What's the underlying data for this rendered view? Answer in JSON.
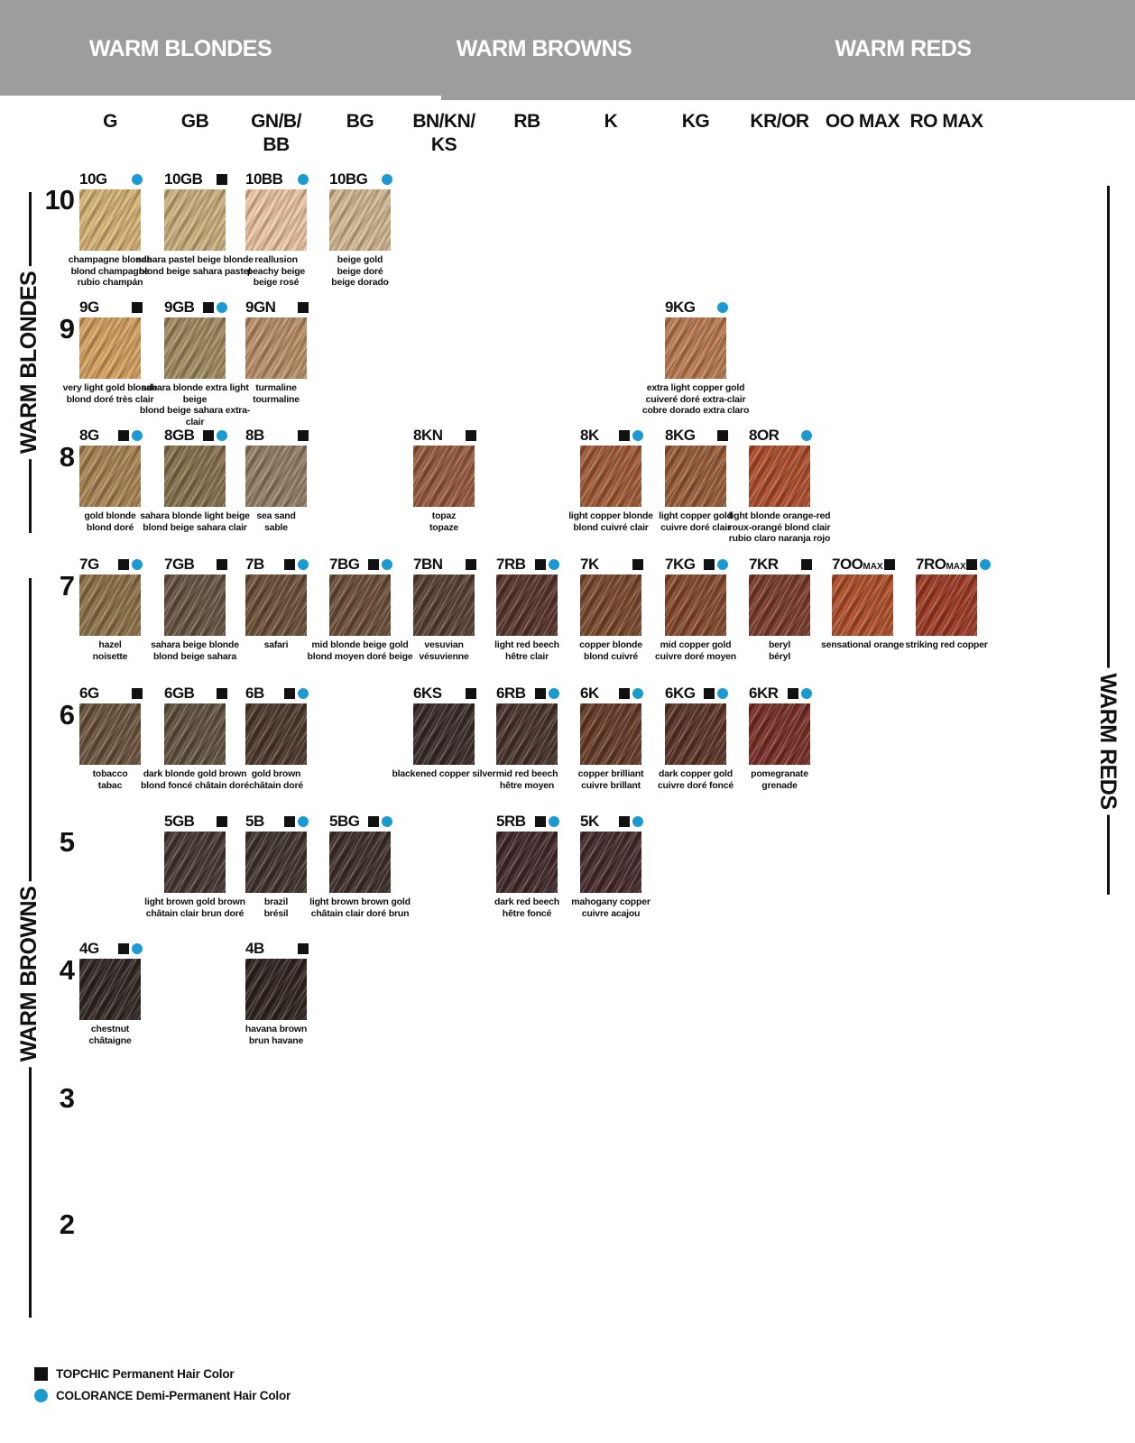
{
  "page": {
    "background": "#ffffff",
    "banner_color": "#9d9d9d",
    "accent_blue": "#1b9ad2",
    "ink": "#111111"
  },
  "header": {
    "groups": [
      {
        "label": "WARM BLONDES"
      },
      {
        "label": "WARM BROWNS"
      },
      {
        "label": "WARM REDS"
      }
    ]
  },
  "side_labels": {
    "left_top": "WARM BLONDES",
    "left_bottom": "WARM BROWNS",
    "right": "WARM REDS"
  },
  "columns": [
    {
      "key": "G",
      "lines": [
        "G"
      ]
    },
    {
      "key": "GB",
      "lines": [
        "GB"
      ]
    },
    {
      "key": "GNBBB",
      "lines": [
        "GN/B/",
        "BB"
      ]
    },
    {
      "key": "BG",
      "lines": [
        "BG"
      ]
    },
    {
      "key": "BNKNKS",
      "lines": [
        "BN/KN/",
        "KS"
      ]
    },
    {
      "key": "RB",
      "lines": [
        "RB"
      ]
    },
    {
      "key": "K",
      "lines": [
        "K"
      ]
    },
    {
      "key": "KG",
      "lines": [
        "KG"
      ]
    },
    {
      "key": "KROR",
      "lines": [
        "KR/OR"
      ]
    },
    {
      "key": "OOMAX",
      "lines": [
        "OO MAX"
      ]
    },
    {
      "key": "ROMAX",
      "lines": [
        "RO MAX"
      ]
    }
  ],
  "levels": [
    "10",
    "9",
    "8",
    "7",
    "6",
    "5",
    "4",
    "3",
    "2"
  ],
  "legend": [
    {
      "marker": "topchic-square",
      "label": "TOPCHIC Permanent Hair Color"
    },
    {
      "marker": "colorance-dot",
      "label": "COLORANCE Demi-Permanent Hair Color"
    }
  ],
  "swatches": [
    {
      "code": "10G",
      "sub": "",
      "level": "10",
      "column": "G",
      "topchic": false,
      "colorance": true,
      "color": "#d8b474",
      "names": [
        "champagne blonde",
        "blond champagne",
        "rubio champán"
      ]
    },
    {
      "code": "10GB",
      "sub": "",
      "level": "10",
      "column": "GB",
      "topchic": true,
      "colorance": false,
      "color": "#ccb07c",
      "names": [
        "sahara pastel beige blonde",
        "blond beige sahara pastel"
      ]
    },
    {
      "code": "10BB",
      "sub": "",
      "level": "10",
      "column": "GNBBB",
      "topchic": false,
      "colorance": true,
      "color": "#eec6a2",
      "names": [
        "reallusion",
        "peachy beige",
        "beige rosé"
      ]
    },
    {
      "code": "10BG",
      "sub": "",
      "level": "10",
      "column": "BG",
      "topchic": false,
      "colorance": true,
      "color": "#d2b890",
      "names": [
        "beige gold",
        "beige doré",
        "beige dorado"
      ]
    },
    {
      "code": "9G",
      "sub": "",
      "level": "9",
      "column": "G",
      "topchic": true,
      "colorance": false,
      "color": "#d6a05e",
      "names": [
        "very light gold blonde",
        "blond doré très clair"
      ]
    },
    {
      "code": "9GB",
      "sub": "",
      "level": "9",
      "column": "GB",
      "topchic": true,
      "colorance": true,
      "color": "#a18a5e",
      "names": [
        "sahara blonde extra light beige",
        "blond beige sahara extra-clair"
      ]
    },
    {
      "code": "9GN",
      "sub": "",
      "level": "9",
      "column": "GNBBB",
      "topchic": true,
      "colorance": false,
      "color": "#b98f66",
      "names": [
        "turmaline",
        "tourmaline"
      ]
    },
    {
      "code": "9KG",
      "sub": "",
      "level": "9",
      "column": "KG",
      "topchic": false,
      "colorance": true,
      "color": "#b97a4e",
      "names": [
        "extra light copper gold",
        "cuiveré doré extra-clair",
        "cobre dorado extra claro"
      ]
    },
    {
      "code": "8G",
      "sub": "",
      "level": "8",
      "column": "G",
      "topchic": true,
      "colorance": true,
      "color": "#a98352",
      "names": [
        "gold blonde",
        "blond doré"
      ]
    },
    {
      "code": "8GB",
      "sub": "",
      "level": "8",
      "column": "GB",
      "topchic": true,
      "colorance": true,
      "color": "#86704c",
      "names": [
        "sahara blonde light beige",
        "blond beige sahara clair"
      ]
    },
    {
      "code": "8B",
      "sub": "",
      "level": "8",
      "column": "GNBBB",
      "topchic": true,
      "colorance": false,
      "color": "#947c64",
      "names": [
        "sea sand",
        "sable"
      ]
    },
    {
      "code": "8KN",
      "sub": "",
      "level": "8",
      "column": "BNKNKS",
      "topchic": true,
      "colorance": false,
      "color": "#96593c",
      "names": [
        "topaz",
        "topaze"
      ]
    },
    {
      "code": "8K",
      "sub": "",
      "level": "8",
      "column": "K",
      "topchic": true,
      "colorance": true,
      "color": "#a05a34",
      "names": [
        "light copper blonde",
        "blond cuivré clair"
      ]
    },
    {
      "code": "8KG",
      "sub": "",
      "level": "8",
      "column": "KG",
      "topchic": true,
      "colorance": false,
      "color": "#985c36",
      "names": [
        "light copper gold",
        "cuivre doré clair"
      ]
    },
    {
      "code": "8OR",
      "sub": "",
      "level": "8",
      "column": "KROR",
      "topchic": false,
      "colorance": true,
      "color": "#ae4d2a",
      "names": [
        "light blonde orange-red",
        "roux-orangé blond clair",
        "rubio claro naranja rojo"
      ]
    },
    {
      "code": "7G",
      "sub": "",
      "level": "7",
      "column": "G",
      "topchic": true,
      "colorance": true,
      "color": "#8d7146",
      "names": [
        "hazel",
        "noisette"
      ]
    },
    {
      "code": "7GB",
      "sub": "",
      "level": "7",
      "column": "GB",
      "topchic": true,
      "colorance": false,
      "color": "#675340",
      "names": [
        "sahara beige blonde",
        "blond beige sahara"
      ]
    },
    {
      "code": "7B",
      "sub": "",
      "level": "7",
      "column": "GNBBB",
      "topchic": true,
      "colorance": true,
      "color": "#6d4f38",
      "names": [
        "safari"
      ]
    },
    {
      "code": "7BG",
      "sub": "",
      "level": "7",
      "column": "BG",
      "topchic": true,
      "colorance": true,
      "color": "#6a4e36",
      "names": [
        "mid blonde beige gold",
        "blond moyen doré beige"
      ]
    },
    {
      "code": "7BN",
      "sub": "",
      "level": "7",
      "column": "BNKNKS",
      "topchic": true,
      "colorance": false,
      "color": "#583f32",
      "names": [
        "vesuvian",
        "vésuvienne"
      ]
    },
    {
      "code": "7RB",
      "sub": "",
      "level": "7",
      "column": "RB",
      "topchic": true,
      "colorance": true,
      "color": "#57342a",
      "names": [
        "light red beech",
        "hêtre clair"
      ]
    },
    {
      "code": "7K",
      "sub": "",
      "level": "7",
      "column": "K",
      "topchic": true,
      "colorance": false,
      "color": "#7a482c",
      "names": [
        "copper blonde",
        "blond cuivré"
      ]
    },
    {
      "code": "7KG",
      "sub": "",
      "level": "7",
      "column": "KG",
      "topchic": true,
      "colorance": true,
      "color": "#86482a",
      "names": [
        "mid copper gold",
        "cuivre doré moyen"
      ]
    },
    {
      "code": "7KR",
      "sub": "",
      "level": "7",
      "column": "KROR",
      "topchic": true,
      "colorance": false,
      "color": "#7a3a2b",
      "names": [
        "beryl",
        "béryl"
      ]
    },
    {
      "code": "7OO",
      "sub": "MAX",
      "level": "7",
      "column": "OOMAX",
      "topchic": true,
      "colorance": false,
      "color": "#b04e28",
      "names": [
        "sensational orange"
      ]
    },
    {
      "code": "7RO",
      "sub": "MAX",
      "level": "7",
      "column": "ROMAX",
      "topchic": true,
      "colorance": true,
      "color": "#9e3a22",
      "names": [
        "striking red copper"
      ]
    },
    {
      "code": "6G",
      "sub": "",
      "level": "6",
      "column": "G",
      "topchic": true,
      "colorance": false,
      "color": "#6b523a",
      "names": [
        "tobacco",
        "tabac"
      ]
    },
    {
      "code": "6GB",
      "sub": "",
      "level": "6",
      "column": "GB",
      "topchic": true,
      "colorance": false,
      "color": "#60503c",
      "names": [
        "dark blonde gold brown",
        "blond foncé châtain doré"
      ]
    },
    {
      "code": "6B",
      "sub": "",
      "level": "6",
      "column": "GNBBB",
      "topchic": true,
      "colorance": true,
      "color": "#4d372b",
      "names": [
        "gold brown",
        "châtain doré"
      ]
    },
    {
      "code": "6KS",
      "sub": "",
      "level": "6",
      "column": "BNKNKS",
      "topchic": true,
      "colorance": false,
      "color": "#382b28",
      "names": [
        "blackened copper silver"
      ]
    },
    {
      "code": "6RB",
      "sub": "",
      "level": "6",
      "column": "RB",
      "topchic": true,
      "colorance": true,
      "color": "#48312a",
      "names": [
        "mid red beech",
        "hêtre moyen"
      ]
    },
    {
      "code": "6K",
      "sub": "",
      "level": "6",
      "column": "K",
      "topchic": true,
      "colorance": true,
      "color": "#663a26",
      "names": [
        "copper brilliant",
        "cuivre brillant"
      ]
    },
    {
      "code": "6KG",
      "sub": "",
      "level": "6",
      "column": "KG",
      "topchic": true,
      "colorance": true,
      "color": "#5b3325",
      "names": [
        "dark copper gold",
        "cuivre doré foncé"
      ]
    },
    {
      "code": "6KR",
      "sub": "",
      "level": "6",
      "column": "KROR",
      "topchic": true,
      "colorance": true,
      "color": "#772e25",
      "names": [
        "pomegranate",
        "grenade"
      ]
    },
    {
      "code": "5GB",
      "sub": "",
      "level": "5",
      "column": "GB",
      "topchic": true,
      "colorance": false,
      "color": "#443531",
      "names": [
        "light brown gold brown",
        "châtain clair brun doré"
      ]
    },
    {
      "code": "5B",
      "sub": "",
      "level": "5",
      "column": "GNBBB",
      "topchic": true,
      "colorance": true,
      "color": "#3f322b",
      "names": [
        "brazil",
        "brésil"
      ]
    },
    {
      "code": "5BG",
      "sub": "",
      "level": "5",
      "column": "BG",
      "topchic": true,
      "colorance": true,
      "color": "#3d2e28",
      "names": [
        "light brown brown gold",
        "châtain clair doré brun"
      ]
    },
    {
      "code": "5RB",
      "sub": "",
      "level": "5",
      "column": "RB",
      "topchic": true,
      "colorance": true,
      "color": "#432829",
      "names": [
        "dark red beech",
        "hêtre foncé"
      ]
    },
    {
      "code": "5K",
      "sub": "",
      "level": "5",
      "column": "K",
      "topchic": true,
      "colorance": true,
      "color": "#462a29",
      "names": [
        "mahogany copper",
        "cuivre acajou"
      ]
    },
    {
      "code": "4G",
      "sub": "",
      "level": "4",
      "column": "G",
      "topchic": true,
      "colorance": true,
      "color": "#312622",
      "names": [
        "chestnut",
        "châtaigne"
      ]
    },
    {
      "code": "4B",
      "sub": "",
      "level": "4",
      "column": "GNBBB",
      "topchic": true,
      "colorance": false,
      "color": "#2f231e",
      "names": [
        "havana brown",
        "brun havane"
      ]
    }
  ]
}
